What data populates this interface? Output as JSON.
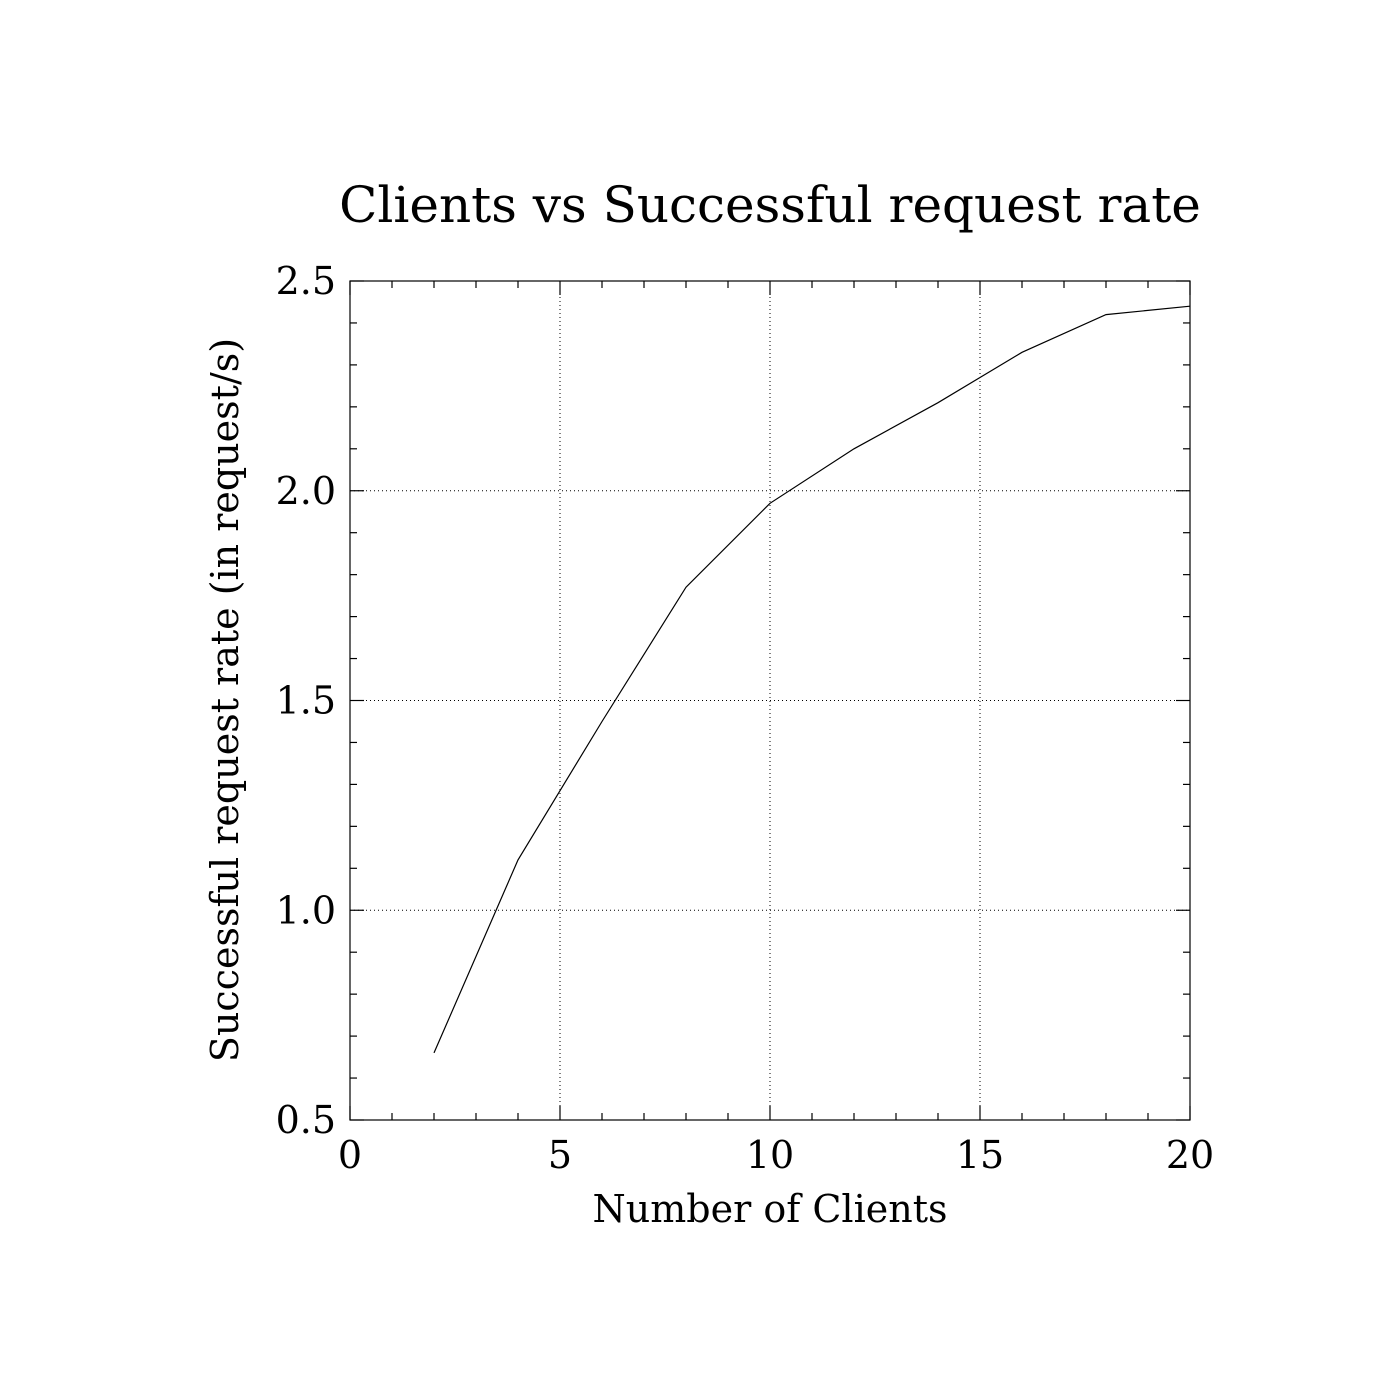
{
  "chart_data": {
    "type": "line",
    "title": "Clients vs Successful request rate",
    "xlabel": "Number of Clients",
    "ylabel": "Successful request rate (in request/s)",
    "xlim": [
      0,
      20
    ],
    "ylim": [
      0.5,
      2.5
    ],
    "x_ticks": [
      0,
      5,
      10,
      15,
      20
    ],
    "x_tick_labels": [
      "0",
      "5",
      "10",
      "15",
      "20"
    ],
    "y_ticks": [
      0.5,
      1.0,
      1.5,
      2.0,
      2.5
    ],
    "y_tick_labels": [
      "0.5",
      "1.0",
      "1.5",
      "2.0",
      "2.5"
    ],
    "x_minor_step": 1,
    "y_minor_step": 0.1,
    "grid": true,
    "series": [
      {
        "x": [
          2,
          4,
          6,
          8,
          10,
          12,
          14,
          16,
          18,
          20
        ],
        "y": [
          0.66,
          1.12,
          1.45,
          1.77,
          1.97,
          2.1,
          2.21,
          2.33,
          2.42,
          2.44
        ]
      }
    ]
  }
}
